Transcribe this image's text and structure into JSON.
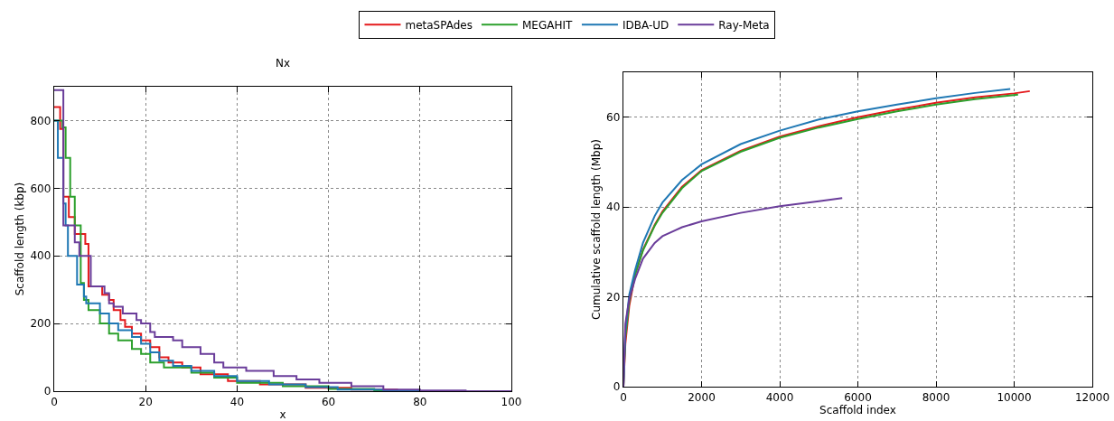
{
  "chart_data": [
    {
      "type": "step",
      "title": "Nx",
      "xlabel": "x",
      "ylabel": "Scaffold length (kbp)",
      "xlim": [
        0,
        100
      ],
      "xticks": [
        0,
        20,
        40,
        60,
        80,
        100
      ],
      "ylim": [
        0,
        900
      ],
      "yticks": [
        0,
        200,
        400,
        600,
        800
      ],
      "grid": true,
      "legend": "top",
      "line_style": "solid",
      "marker": "none",
      "series": [
        {
          "name": "metaSPAdes",
          "color": "#e41a1c",
          "x": [
            0,
            1.3,
            2,
            3.2,
            4.5,
            6.8,
            7.5,
            10.5,
            12,
            13,
            14.5,
            15.5,
            17,
            19,
            21,
            23,
            25,
            28,
            32,
            38,
            45,
            55,
            65,
            75,
            100
          ],
          "values": [
            840,
            775,
            575,
            515,
            465,
            435,
            310,
            285,
            270,
            240,
            210,
            190,
            170,
            150,
            130,
            100,
            85,
            70,
            50,
            30,
            20,
            10,
            5,
            0,
            0
          ]
        },
        {
          "name": "MEGAHIT",
          "color": "#2ca02c",
          "x": [
            0,
            1.8,
            2.5,
            3.5,
            4.5,
            5.8,
            6.5,
            7.5,
            10,
            12,
            14,
            17,
            19,
            21,
            24,
            30,
            35,
            40,
            50,
            60,
            70,
            80,
            100
          ],
          "values": [
            800,
            780,
            690,
            575,
            490,
            320,
            270,
            240,
            200,
            170,
            150,
            125,
            110,
            85,
            70,
            55,
            40,
            25,
            15,
            7,
            2,
            0,
            0
          ]
        },
        {
          "name": "IDBA-UD",
          "color": "#1f78b4",
          "x": [
            0,
            0.8,
            2,
            2.5,
            3,
            5,
            6.5,
            7,
            10,
            12,
            14,
            17,
            19,
            21,
            23,
            26,
            30,
            35,
            40,
            47,
            55,
            62,
            72,
            80,
            100
          ],
          "values": [
            800,
            690,
            555,
            490,
            400,
            315,
            280,
            260,
            230,
            200,
            180,
            160,
            140,
            115,
            90,
            75,
            60,
            45,
            30,
            20,
            12,
            5,
            1,
            0,
            0
          ]
        },
        {
          "name": "Ray-Meta",
          "color": "#6a3d9a",
          "x": [
            0,
            2,
            4.5,
            5.5,
            8,
            11,
            12,
            13,
            15,
            18,
            19,
            21,
            22,
            26,
            28,
            32,
            35,
            37,
            42,
            48,
            53,
            58,
            65,
            72,
            80,
            90,
            100
          ],
          "values": [
            890,
            490,
            440,
            400,
            310,
            290,
            260,
            250,
            230,
            210,
            200,
            175,
            160,
            150,
            130,
            110,
            85,
            70,
            60,
            45,
            35,
            25,
            15,
            5,
            2,
            0,
            0
          ]
        }
      ]
    },
    {
      "type": "line",
      "xlabel": "Scaffold index",
      "ylabel": "Cumulative scaffold length (Mbp)",
      "xlim": [
        0,
        12000
      ],
      "xticks": [
        0,
        2000,
        4000,
        6000,
        8000,
        10000,
        12000
      ],
      "ylim": [
        0,
        70
      ],
      "yticks": [
        0,
        20,
        40,
        60
      ],
      "grid": true,
      "line_style": "solid",
      "marker": "none",
      "series": [
        {
          "color": "#e41a1c",
          "x": [
            0,
            50,
            150,
            300,
            500,
            800,
            1000,
            1500,
            2000,
            3000,
            4000,
            5000,
            6000,
            7000,
            8000,
            9000,
            10000,
            10400
          ],
          "values": [
            0,
            9.5,
            18,
            25,
            30.5,
            36,
            39,
            44.5,
            48.2,
            52.5,
            55.7,
            58,
            60,
            61.7,
            63.2,
            64.4,
            65.3,
            65.8
          ]
        },
        {
          "color": "#2ca02c",
          "x": [
            0,
            50,
            150,
            300,
            500,
            800,
            1000,
            1500,
            2000,
            3000,
            4000,
            5000,
            6000,
            7000,
            8000,
            9000,
            10100
          ],
          "values": [
            0,
            11,
            19,
            25,
            30.3,
            35.8,
            38.7,
            44.2,
            48,
            52.3,
            55.4,
            57.7,
            59.6,
            61.3,
            62.8,
            64,
            65
          ]
        },
        {
          "color": "#1f78b4",
          "x": [
            0,
            50,
            150,
            300,
            500,
            800,
            1000,
            1500,
            2000,
            3000,
            4000,
            5000,
            6000,
            7000,
            8000,
            9000,
            9900
          ],
          "values": [
            0,
            12.5,
            20.5,
            26,
            32,
            38,
            41,
            46,
            49.5,
            54,
            57,
            59.5,
            61.3,
            62.8,
            64.2,
            65.4,
            66.3
          ]
        },
        {
          "color": "#6a3d9a",
          "x": [
            0,
            50,
            150,
            300,
            500,
            800,
            1000,
            1500,
            2000,
            3000,
            4000,
            5000,
            5600
          ],
          "values": [
            0,
            14,
            19.5,
            24,
            28.5,
            32,
            33.5,
            35.5,
            36.8,
            38.7,
            40.2,
            41.3,
            42
          ]
        }
      ]
    }
  ]
}
